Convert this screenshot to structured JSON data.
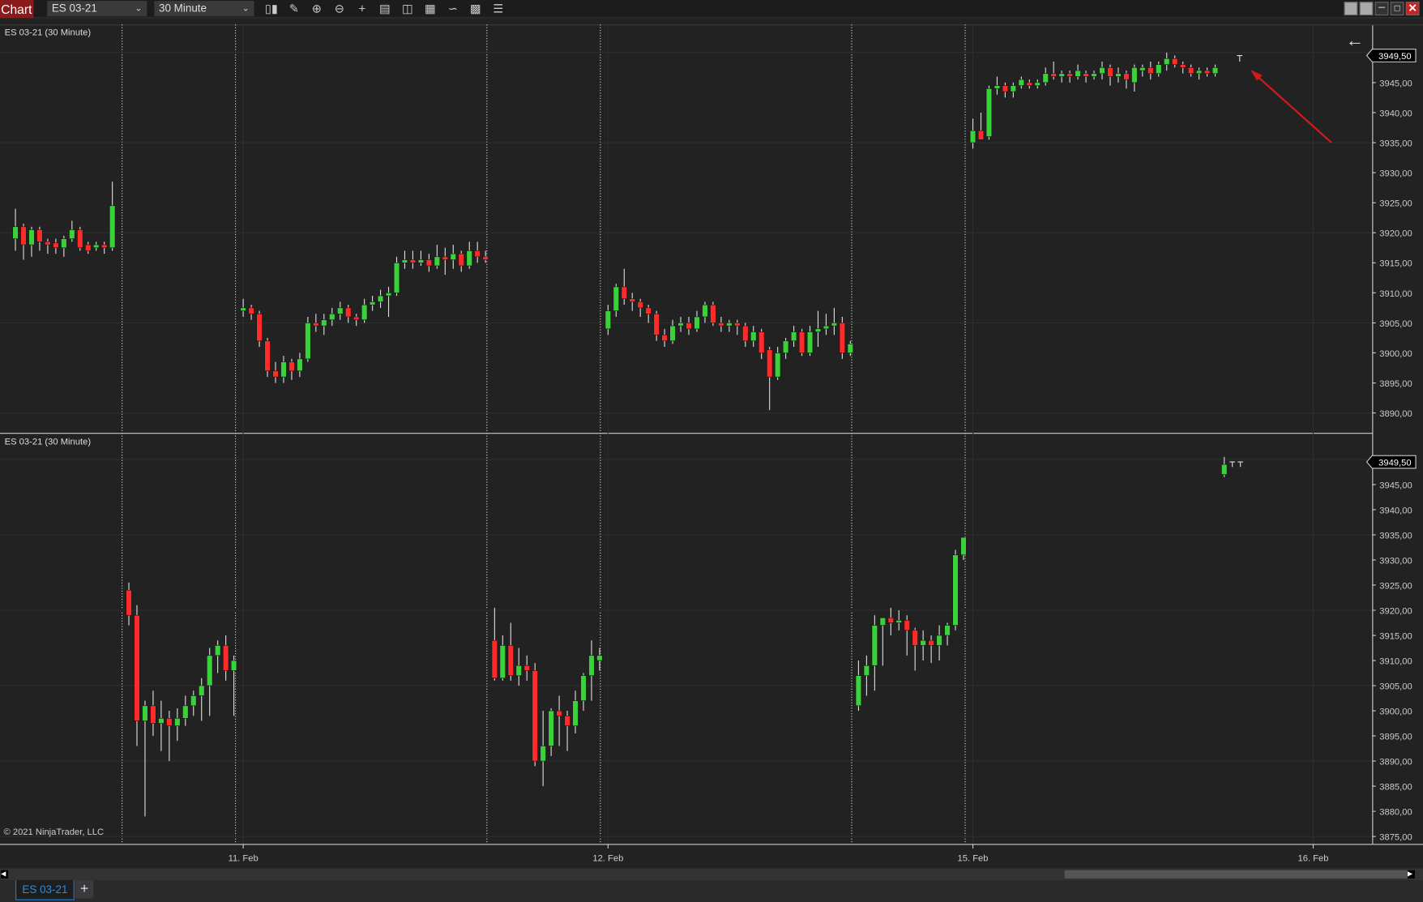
{
  "toolbar": {
    "chart_label": "Chart",
    "instrument": "ES 03-21",
    "interval": "30 Minute",
    "icons": [
      "bar-type-icon",
      "pencil-draw-icon",
      "zoom-in-icon",
      "zoom-out-icon",
      "crosshair-icon",
      "data-box-icon",
      "chart-trader-icon",
      "indicators-icon",
      "strategies-icon",
      "properties-icon",
      "list-icon"
    ]
  },
  "window_controls": [
    "tile-icon",
    "tile-icon",
    "minimize-icon",
    "maximize-icon",
    "close-icon"
  ],
  "copyright": "© 2021 NinjaTrader, LLC",
  "tabs": [
    {
      "label": "ES 03-21"
    }
  ],
  "add_tab": "+",
  "colors": {
    "up": "#3bd13b",
    "down": "#ff2a2a",
    "background": "#222222",
    "arrow": "#d11a1a"
  },
  "chart_data": {
    "type": "candlestick",
    "x_ticks": [
      "11. Feb",
      "12. Feb",
      "15. Feb",
      "16. Feb"
    ],
    "panels": [
      {
        "title": "ES 03-21 (30 Minute)",
        "ylim": [
          3887,
          3952
        ],
        "y_ticks": [
          "3945,00",
          "3940,00",
          "3935,00",
          "3930,00",
          "3925,00",
          "3920,00",
          "3915,00",
          "3910,00",
          "3905,00",
          "3900,00",
          "3895,00",
          "3890,00"
        ],
        "y_tick_values": [
          3945,
          3940,
          3935,
          3930,
          3925,
          3920,
          3915,
          3910,
          3905,
          3900,
          3895,
          3890
        ],
        "last_price": "3949,50",
        "last_value": 3949.5,
        "segments": [
          [
            [
              3919,
              3924,
              3917,
              3921
            ],
            [
              3921,
              3921.5,
              3915.5,
              3918
            ],
            [
              3918,
              3921,
              3916,
              3920.5
            ],
            [
              3920.5,
              3921,
              3917,
              3918.5
            ],
            [
              3918.5,
              3919,
              3916.5,
              3918
            ],
            [
              3918.3,
              3919,
              3916.5,
              3917.5
            ],
            [
              3917.5,
              3919.5,
              3916,
              3919
            ],
            [
              3919,
              3922,
              3918.5,
              3920.5
            ],
            [
              3920.5,
              3921,
              3917,
              3917.5
            ],
            [
              3918,
              3918.5,
              3916.5,
              3917
            ],
            [
              3917.5,
              3918.5,
              3917,
              3918
            ],
            [
              3918,
              3918.5,
              3916.5,
              3917.5
            ],
            [
              3917.5,
              3928.5,
              3917,
              3924.5
            ]
          ],
          [
            [
              3907,
              3909,
              3906,
              3907.5
            ],
            [
              3907.5,
              3908,
              3905.5,
              3906.5
            ],
            [
              3906.5,
              3907,
              3901,
              3902
            ],
            [
              3902,
              3902.5,
              3896,
              3897
            ],
            [
              3897,
              3898.5,
              3895,
              3896
            ],
            [
              3896,
              3899.5,
              3895,
              3898.5
            ],
            [
              3898.5,
              3899,
              3895.5,
              3897
            ],
            [
              3897,
              3900,
              3896,
              3899
            ],
            [
              3899,
              3906,
              3898.5,
              3905
            ],
            [
              3905,
              3906.5,
              3903.5,
              3904.5
            ],
            [
              3904.5,
              3906.5,
              3903,
              3905.5
            ],
            [
              3905.5,
              3907.5,
              3904.5,
              3906.5
            ],
            [
              3906.5,
              3908.5,
              3905.5,
              3907.5
            ],
            [
              3907.5,
              3908,
              3905,
              3906
            ],
            [
              3906,
              3906.5,
              3904.5,
              3905.5
            ],
            [
              3905.5,
              3909,
              3905,
              3908
            ],
            [
              3908,
              3909.5,
              3907,
              3908.5
            ],
            [
              3908.5,
              3910.5,
              3907.5,
              3909.5
            ],
            [
              3909.5,
              3911,
              3906,
              3910
            ],
            [
              3910,
              3916,
              3909.5,
              3915
            ],
            [
              3915,
              3917,
              3914,
              3915.5
            ],
            [
              3915.5,
              3917,
              3914,
              3915
            ],
            [
              3915,
              3917,
              3914.5,
              3915.5
            ],
            [
              3915.5,
              3916.5,
              3913.5,
              3914.5
            ],
            [
              3914.5,
              3918,
              3914,
              3916
            ],
            [
              3916,
              3917.5,
              3913,
              3915.5
            ],
            [
              3915.5,
              3918,
              3914,
              3916.5
            ],
            [
              3916.5,
              3917,
              3913.5,
              3914.5
            ],
            [
              3914.5,
              3918.5,
              3914,
              3917
            ],
            [
              3917,
              3918.5,
              3915,
              3916
            ],
            [
              3916,
              3917,
              3915,
              3915.5
            ]
          ],
          [
            [
              3904,
              3908,
              3903,
              3907
            ],
            [
              3907,
              3911.5,
              3906,
              3911
            ],
            [
              3911,
              3914,
              3908,
              3909
            ],
            [
              3909,
              3910,
              3907,
              3908.5
            ],
            [
              3908.5,
              3909,
              3906,
              3907.5
            ],
            [
              3907.5,
              3908,
              3905,
              3906.5
            ],
            [
              3906.5,
              3907,
              3902,
              3903
            ],
            [
              3903,
              3904,
              3901,
              3902
            ],
            [
              3902,
              3905.5,
              3901.5,
              3904.5
            ],
            [
              3904.5,
              3906,
              3903.5,
              3905
            ],
            [
              3905,
              3906,
              3903,
              3904
            ],
            [
              3904,
              3907,
              3903.5,
              3906
            ],
            [
              3906,
              3908.5,
              3905,
              3908
            ],
            [
              3908,
              3908.5,
              3904.5,
              3905
            ],
            [
              3905,
              3906,
              3903.5,
              3904.5
            ],
            [
              3904.5,
              3905.5,
              3903.5,
              3905
            ],
            [
              3905,
              3905.5,
              3903,
              3904.5
            ],
            [
              3904.5,
              3905,
              3901,
              3902
            ],
            [
              3902,
              3904.5,
              3901,
              3903.5
            ],
            [
              3903.5,
              3904,
              3899,
              3900
            ],
            [
              3900.5,
              3901,
              3890.5,
              3896
            ],
            [
              3896,
              3901,
              3895.5,
              3900
            ],
            [
              3900,
              3902.5,
              3899,
              3902
            ],
            [
              3902,
              3904.5,
              3901,
              3903.5
            ],
            [
              3903.5,
              3904,
              3899.5,
              3900
            ],
            [
              3900,
              3904.5,
              3899.5,
              3903.5
            ],
            [
              3903.5,
              3907,
              3901,
              3904
            ],
            [
              3904,
              3906.5,
              3903,
              3904.5
            ],
            [
              3904.5,
              3907.5,
              3903,
              3905
            ],
            [
              3905,
              3906,
              3899,
              3900
            ],
            [
              3900,
              3902,
              3899.5,
              3901.5
            ]
          ],
          [
            [
              3935,
              3939,
              3934,
              3937
            ],
            [
              3937,
              3940,
              3935.5,
              3935.5
            ],
            [
              3936,
              3944.5,
              3935.5,
              3944
            ],
            [
              3944,
              3946,
              3943,
              3944.5
            ],
            [
              3944.5,
              3945,
              3942.5,
              3943.5
            ],
            [
              3943.5,
              3945,
              3942.5,
              3944.5
            ],
            [
              3944.5,
              3946,
              3944,
              3945.5
            ],
            [
              3945,
              3945.5,
              3944,
              3944.5
            ],
            [
              3944.5,
              3945.5,
              3944,
              3945
            ],
            [
              3945,
              3947.5,
              3944.5,
              3946.5
            ],
            [
              3946.5,
              3948.5,
              3945.5,
              3946
            ],
            [
              3946,
              3947,
              3945,
              3946.5
            ],
            [
              3946.5,
              3947,
              3945,
              3946
            ],
            [
              3946,
              3948,
              3945.5,
              3947
            ],
            [
              3946.5,
              3947,
              3945,
              3946
            ],
            [
              3946,
              3947,
              3945.5,
              3946.5
            ],
            [
              3946.5,
              3948.5,
              3945.5,
              3947.5
            ],
            [
              3947.5,
              3948,
              3944.5,
              3946
            ],
            [
              3946,
              3947.5,
              3945,
              3946.5
            ],
            [
              3946.5,
              3947,
              3944,
              3945.5
            ],
            [
              3945,
              3948,
              3943.5,
              3947.5
            ],
            [
              3947,
              3948,
              3946,
              3947.5
            ],
            [
              3947.5,
              3948.5,
              3945.5,
              3946.5
            ],
            [
              3946.5,
              3948.5,
              3946,
              3948
            ],
            [
              3948,
              3950,
              3947,
              3949
            ],
            [
              3949,
              3949.5,
              3947.5,
              3948
            ],
            [
              3948,
              3948.5,
              3946.5,
              3947.5
            ],
            [
              3947.5,
              3948,
              3946,
              3946.5
            ],
            [
              3946.5,
              3947.5,
              3945.5,
              3947
            ],
            [
              3947,
              3947.5,
              3946,
              3946.5
            ],
            [
              3946.5,
              3948,
              3946,
              3947.5
            ]
          ],
          [
            [
              3949.5,
              3949.5,
              3948.5,
              3949.5
            ]
          ]
        ]
      },
      {
        "title": "ES 03-21 (30 Minute)",
        "ylim": [
          3873,
          3951
        ],
        "y_ticks": [
          "3945,00",
          "3940,00",
          "3935,00",
          "3930,00",
          "3925,00",
          "3920,00",
          "3915,00",
          "3910,00",
          "3905,00",
          "3900,00",
          "3895,00",
          "3890,00",
          "3885,00",
          "3880,00",
          "3875,00"
        ],
        "y_tick_values": [
          3945,
          3940,
          3935,
          3930,
          3925,
          3920,
          3915,
          3910,
          3905,
          3900,
          3895,
          3890,
          3885,
          3880,
          3875
        ],
        "last_price": "3949,50",
        "last_value": 3949.5,
        "segments": [
          [
            [
              3924,
              3925.5,
              3917,
              3919
            ],
            [
              3919,
              3921,
              3893,
              3898
            ],
            [
              3898,
              3902,
              3879,
              3901
            ],
            [
              3901,
              3904,
              3895,
              3897.5
            ],
            [
              3897.5,
              3902,
              3892,
              3898.5
            ],
            [
              3898.5,
              3900,
              3890,
              3897
            ],
            [
              3897,
              3900.5,
              3894,
              3898.5
            ],
            [
              3898.5,
              3903,
              3897,
              3901
            ],
            [
              3901,
              3904,
              3899,
              3903
            ],
            [
              3903,
              3906.5,
              3898,
              3905
            ],
            [
              3905,
              3912.5,
              3899,
              3911
            ],
            [
              3911,
              3914,
              3907.5,
              3913
            ],
            [
              3913,
              3915,
              3906,
              3908
            ],
            [
              3908,
              3911,
              3899,
              3910
            ]
          ],
          [
            [
              3914,
              3920.5,
              3906,
              3906.5
            ],
            [
              3906.5,
              3915,
              3906,
              3913
            ],
            [
              3913,
              3917.5,
              3906,
              3907
            ],
            [
              3907,
              3912.5,
              3905,
              3909
            ],
            [
              3909,
              3911,
              3906,
              3908
            ],
            [
              3908,
              3909.5,
              3889,
              3890
            ],
            [
              3890,
              3900,
              3885,
              3893
            ],
            [
              3893,
              3900.5,
              3891,
              3900
            ],
            [
              3900,
              3903,
              3893,
              3899
            ],
            [
              3899,
              3900,
              3892,
              3897
            ],
            [
              3897,
              3904,
              3895.5,
              3902
            ],
            [
              3902,
              3907.5,
              3900,
              3907
            ],
            [
              3907,
              3914,
              3902,
              3911
            ],
            [
              3910,
              3912.5,
              3908,
              3911
            ]
          ],
          [
            [
              3901,
              3910,
              3900,
              3907
            ],
            [
              3907,
              3911,
              3903,
              3909
            ],
            [
              3909,
              3919,
              3904,
              3917
            ],
            [
              3917,
              3918.5,
              3909,
              3918.5
            ],
            [
              3918.5,
              3920.5,
              3915,
              3917.5
            ],
            [
              3917.5,
              3920,
              3916,
              3918
            ],
            [
              3918,
              3919,
              3911,
              3916
            ],
            [
              3916,
              3916.5,
              3908,
              3913
            ],
            [
              3913,
              3916,
              3910,
              3914
            ],
            [
              3914,
              3915,
              3909.5,
              3913
            ],
            [
              3913,
              3917,
              3910,
              3915
            ],
            [
              3915,
              3917.5,
              3913,
              3917
            ],
            [
              3917,
              3932,
              3916,
              3931
            ],
            [
              3931,
              3934.5,
              3930,
              3934.5
            ]
          ],
          [
            [
              3947,
              3950.5,
              3946.5,
              3949
            ],
            [
              3949.5,
              3949.5,
              3948.5,
              3949.5
            ],
            [
              3949.5,
              3949.5,
              3948.5,
              3949.5
            ]
          ]
        ]
      }
    ]
  }
}
